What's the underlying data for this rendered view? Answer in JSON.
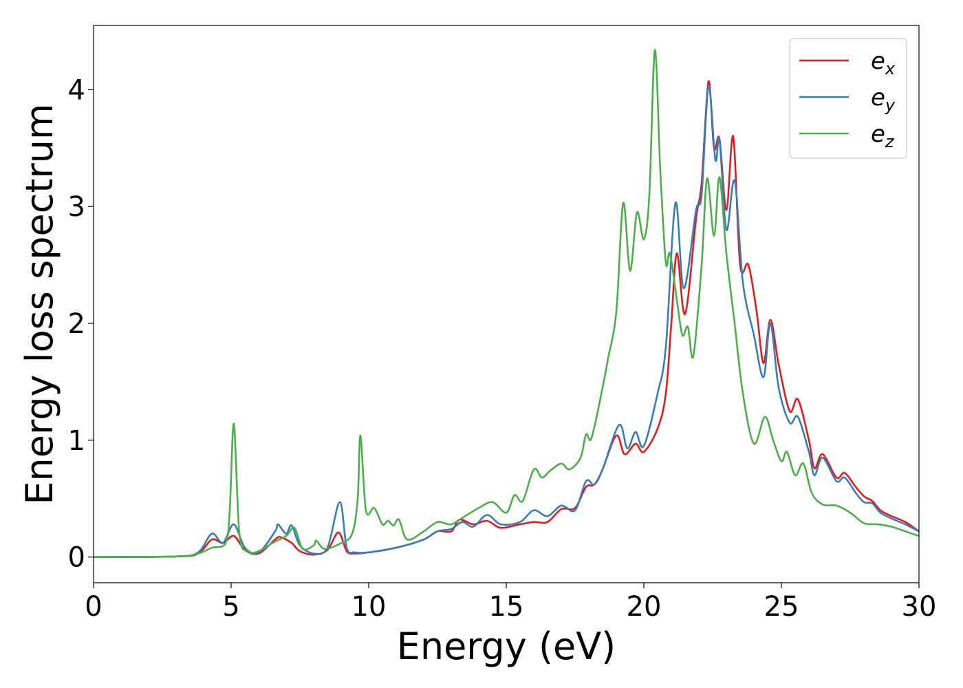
{
  "chart_data": {
    "type": "line",
    "xlabel": "Energy (eV)",
    "ylabel": "Energy loss spectrum",
    "xlim": [
      0,
      30
    ],
    "ylim": [
      -0.22,
      4.55
    ],
    "x_ticks": [
      0,
      5,
      10,
      15,
      20,
      25,
      30
    ],
    "y_ticks": [
      0,
      1,
      2,
      3,
      4
    ],
    "grid": false,
    "legend_position": "top-right",
    "series": [
      {
        "name": "e_x",
        "legend_base": "e",
        "legend_sub": "x",
        "color": "#e41a1c",
        "points": [
          [
            0,
            0
          ],
          [
            3,
            0.005
          ],
          [
            3.8,
            0.03
          ],
          [
            4.3,
            0.15
          ],
          [
            4.7,
            0.12
          ],
          [
            5.1,
            0.18
          ],
          [
            5.5,
            0.06
          ],
          [
            6,
            0.03
          ],
          [
            6.6,
            0.15
          ],
          [
            6.8,
            0.17
          ],
          [
            7.2,
            0.12
          ],
          [
            7.5,
            0.05
          ],
          [
            8,
            0.02
          ],
          [
            8.5,
            0.06
          ],
          [
            8.9,
            0.21
          ],
          [
            9.2,
            0.05
          ],
          [
            9.5,
            0.03
          ],
          [
            10,
            0.04
          ],
          [
            11,
            0.08
          ],
          [
            12,
            0.15
          ],
          [
            12.5,
            0.22
          ],
          [
            13,
            0.22
          ],
          [
            13.3,
            0.32
          ],
          [
            13.8,
            0.28
          ],
          [
            14.3,
            0.31
          ],
          [
            14.8,
            0.25
          ],
          [
            15.5,
            0.28
          ],
          [
            16,
            0.3
          ],
          [
            16.5,
            0.3
          ],
          [
            17,
            0.41
          ],
          [
            17.5,
            0.42
          ],
          [
            17.9,
            0.6
          ],
          [
            18.2,
            0.62
          ],
          [
            18.5,
            0.75
          ],
          [
            19,
            1.04
          ],
          [
            19.3,
            0.88
          ],
          [
            19.7,
            0.97
          ],
          [
            20,
            0.9
          ],
          [
            20.5,
            1.1
          ],
          [
            20.8,
            1.4
          ],
          [
            21,
            2.0
          ],
          [
            21.2,
            2.6
          ],
          [
            21.5,
            2.08
          ],
          [
            21.9,
            2.9
          ],
          [
            22.1,
            3.2
          ],
          [
            22.35,
            4.07
          ],
          [
            22.55,
            3.5
          ],
          [
            22.75,
            3.58
          ],
          [
            23,
            2.97
          ],
          [
            23.25,
            3.6
          ],
          [
            23.5,
            2.5
          ],
          [
            23.8,
            2.5
          ],
          [
            24.1,
            2.1
          ],
          [
            24.35,
            1.66
          ],
          [
            24.6,
            2.03
          ],
          [
            24.9,
            1.65
          ],
          [
            25.3,
            1.25
          ],
          [
            25.6,
            1.35
          ],
          [
            26,
            1.0
          ],
          [
            26.2,
            0.76
          ],
          [
            26.5,
            0.88
          ],
          [
            27,
            0.68
          ],
          [
            27.3,
            0.72
          ],
          [
            27.7,
            0.6
          ],
          [
            28,
            0.52
          ],
          [
            28.3,
            0.48
          ],
          [
            28.6,
            0.4
          ],
          [
            29,
            0.35
          ],
          [
            29.5,
            0.3
          ],
          [
            30,
            0.22
          ]
        ]
      },
      {
        "name": "e_y",
        "legend_base": "e",
        "legend_sub": "y",
        "color": "#377eb8",
        "points": [
          [
            0,
            0
          ],
          [
            3,
            0.005
          ],
          [
            3.8,
            0.04
          ],
          [
            4.3,
            0.2
          ],
          [
            4.7,
            0.12
          ],
          [
            5.1,
            0.28
          ],
          [
            5.5,
            0.08
          ],
          [
            6,
            0.04
          ],
          [
            6.6,
            0.22
          ],
          [
            6.7,
            0.28
          ],
          [
            7.0,
            0.2
          ],
          [
            7.2,
            0.27
          ],
          [
            7.5,
            0.1
          ],
          [
            8,
            0.03
          ],
          [
            8.5,
            0.08
          ],
          [
            8.95,
            0.47
          ],
          [
            9.2,
            0.08
          ],
          [
            9.5,
            0.04
          ],
          [
            10,
            0.04
          ],
          [
            11,
            0.08
          ],
          [
            12,
            0.15
          ],
          [
            12.5,
            0.22
          ],
          [
            13,
            0.24
          ],
          [
            13.4,
            0.3
          ],
          [
            13.8,
            0.26
          ],
          [
            14.3,
            0.36
          ],
          [
            14.8,
            0.28
          ],
          [
            15.5,
            0.3
          ],
          [
            16,
            0.4
          ],
          [
            16.5,
            0.35
          ],
          [
            17,
            0.44
          ],
          [
            17.5,
            0.4
          ],
          [
            17.9,
            0.65
          ],
          [
            18.2,
            0.62
          ],
          [
            18.5,
            0.75
          ],
          [
            19.1,
            1.13
          ],
          [
            19.4,
            0.93
          ],
          [
            19.7,
            1.07
          ],
          [
            20,
            0.95
          ],
          [
            20.5,
            1.4
          ],
          [
            20.8,
            1.8
          ],
          [
            21.15,
            3.03
          ],
          [
            21.45,
            2.3
          ],
          [
            21.9,
            2.97
          ],
          [
            22.1,
            3.1
          ],
          [
            22.35,
            4.03
          ],
          [
            22.6,
            3.4
          ],
          [
            22.75,
            3.57
          ],
          [
            23.0,
            2.8
          ],
          [
            23.3,
            3.22
          ],
          [
            23.6,
            2.35
          ],
          [
            24.0,
            1.9
          ],
          [
            24.35,
            1.54
          ],
          [
            24.6,
            2.0
          ],
          [
            24.9,
            1.45
          ],
          [
            25.3,
            1.15
          ],
          [
            25.6,
            1.2
          ],
          [
            26,
            0.9
          ],
          [
            26.2,
            0.7
          ],
          [
            26.5,
            0.85
          ],
          [
            27,
            0.65
          ],
          [
            27.3,
            0.68
          ],
          [
            27.7,
            0.55
          ],
          [
            28,
            0.47
          ],
          [
            28.3,
            0.46
          ],
          [
            28.6,
            0.38
          ],
          [
            29,
            0.33
          ],
          [
            29.5,
            0.28
          ],
          [
            30,
            0.22
          ]
        ]
      },
      {
        "name": "e_z",
        "legend_base": "e",
        "legend_sub": "z",
        "color": "#4daf4a",
        "points": [
          [
            0,
            0
          ],
          [
            3,
            0.005
          ],
          [
            3.8,
            0.03
          ],
          [
            4.3,
            0.08
          ],
          [
            4.8,
            0.12
          ],
          [
            4.95,
            0.4
          ],
          [
            5.1,
            1.14
          ],
          [
            5.3,
            0.2
          ],
          [
            5.6,
            0.05
          ],
          [
            6,
            0.05
          ],
          [
            6.5,
            0.12
          ],
          [
            7,
            0.18
          ],
          [
            7.3,
            0.25
          ],
          [
            7.6,
            0.07
          ],
          [
            8,
            0.1
          ],
          [
            8.1,
            0.14
          ],
          [
            8.4,
            0.07
          ],
          [
            9,
            0.12
          ],
          [
            9.4,
            0.2
          ],
          [
            9.6,
            0.5
          ],
          [
            9.7,
            1.04
          ],
          [
            9.9,
            0.4
          ],
          [
            10.2,
            0.42
          ],
          [
            10.5,
            0.28
          ],
          [
            10.7,
            0.31
          ],
          [
            10.9,
            0.27
          ],
          [
            11.1,
            0.32
          ],
          [
            11.4,
            0.15
          ],
          [
            12,
            0.22
          ],
          [
            12.5,
            0.3
          ],
          [
            13,
            0.28
          ],
          [
            13.5,
            0.35
          ],
          [
            14,
            0.42
          ],
          [
            14.5,
            0.47
          ],
          [
            15,
            0.38
          ],
          [
            15.3,
            0.53
          ],
          [
            15.6,
            0.48
          ],
          [
            16,
            0.75
          ],
          [
            16.3,
            0.68
          ],
          [
            16.6,
            0.74
          ],
          [
            17,
            0.8
          ],
          [
            17.3,
            0.75
          ],
          [
            17.7,
            0.85
          ],
          [
            17.9,
            1.05
          ],
          [
            18.1,
            1.02
          ],
          [
            18.5,
            1.45
          ],
          [
            18.7,
            1.7
          ],
          [
            19,
            2.1
          ],
          [
            19.25,
            3.03
          ],
          [
            19.5,
            2.45
          ],
          [
            19.75,
            2.95
          ],
          [
            20,
            2.72
          ],
          [
            20.2,
            3.1
          ],
          [
            20.4,
            4.34
          ],
          [
            20.6,
            3.3
          ],
          [
            20.8,
            2.52
          ],
          [
            20.95,
            2.6
          ],
          [
            21.2,
            2.2
          ],
          [
            21.4,
            1.9
          ],
          [
            21.6,
            1.97
          ],
          [
            21.8,
            1.72
          ],
          [
            22.1,
            2.5
          ],
          [
            22.3,
            3.24
          ],
          [
            22.55,
            2.75
          ],
          [
            22.75,
            3.25
          ],
          [
            23.0,
            2.6
          ],
          [
            23.3,
            2.0
          ],
          [
            23.6,
            1.4
          ],
          [
            24.0,
            0.97
          ],
          [
            24.4,
            1.2
          ],
          [
            24.7,
            1.0
          ],
          [
            25.0,
            0.82
          ],
          [
            25.2,
            0.9
          ],
          [
            25.5,
            0.7
          ],
          [
            25.8,
            0.8
          ],
          [
            26.1,
            0.55
          ],
          [
            26.5,
            0.45
          ],
          [
            27,
            0.44
          ],
          [
            27.5,
            0.38
          ],
          [
            28,
            0.29
          ],
          [
            28.5,
            0.28
          ],
          [
            29,
            0.26
          ],
          [
            29.5,
            0.22
          ],
          [
            30,
            0.18
          ]
        ]
      }
    ]
  }
}
